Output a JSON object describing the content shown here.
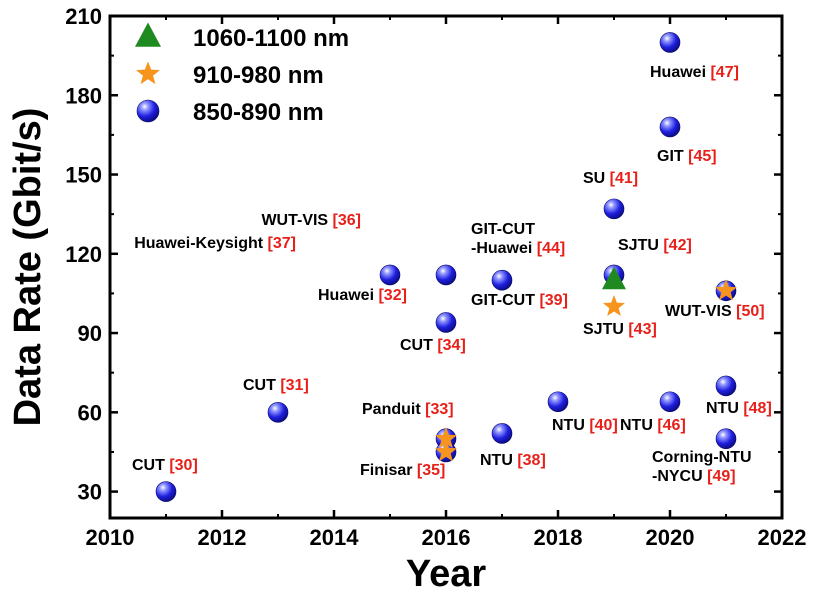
{
  "chart_data": {
    "type": "scatter",
    "xlabel": "Year",
    "ylabel": "Data Rate (Gbit/s)",
    "xlim": [
      2010,
      2022
    ],
    "ylim": [
      20,
      210
    ],
    "xticks": [
      2010,
      2012,
      2014,
      2016,
      2018,
      2020,
      2022
    ],
    "yticks": [
      30,
      60,
      90,
      120,
      150,
      180,
      210
    ],
    "grid": false,
    "legend_position": "top-left",
    "series": [
      {
        "name": "1060-1100 nm",
        "marker": "triangle",
        "color": "#1f8a1f",
        "points": [
          {
            "x": 2019,
            "y": 110
          }
        ]
      },
      {
        "name": "910-980 nm",
        "marker": "star",
        "color": "#f7941d",
        "points": [
          {
            "x": 2016,
            "y": 50
          },
          {
            "x": 2016,
            "y": 45
          },
          {
            "x": 2019,
            "y": 100
          },
          {
            "x": 2021,
            "y": 106
          }
        ]
      },
      {
        "name": "850-890 nm",
        "marker": "sphere",
        "color": "#1f1fe0",
        "points": [
          {
            "x": 2011,
            "y": 30
          },
          {
            "x": 2013,
            "y": 60
          },
          {
            "x": 2015,
            "y": 112
          },
          {
            "x": 2016,
            "y": 112
          },
          {
            "x": 2016,
            "y": 94
          },
          {
            "x": 2016,
            "y": 50
          },
          {
            "x": 2016,
            "y": 45
          },
          {
            "x": 2017,
            "y": 110
          },
          {
            "x": 2017,
            "y": 52
          },
          {
            "x": 2018,
            "y": 64
          },
          {
            "x": 2019,
            "y": 137
          },
          {
            "x": 2019,
            "y": 112
          },
          {
            "x": 2020,
            "y": 200
          },
          {
            "x": 2020,
            "y": 168
          },
          {
            "x": 2020,
            "y": 64
          },
          {
            "x": 2021,
            "y": 106
          },
          {
            "x": 2021,
            "y": 70
          },
          {
            "x": 2021,
            "y": 50
          }
        ]
      }
    ],
    "annotations": [
      {
        "lines": [
          {
            "name": "CUT ",
            "ref": "[30]"
          }
        ],
        "anchor": "start"
      },
      {
        "lines": [
          {
            "name": "CUT ",
            "ref": "[31]"
          }
        ],
        "anchor": "start"
      },
      {
        "lines": [
          {
            "name": "Huawei ",
            "ref": "[32]"
          }
        ],
        "anchor": "start"
      },
      {
        "lines": [
          {
            "name": "WUT-VIS ",
            "ref": "[36]"
          }
        ],
        "anchor": "end"
      },
      {
        "lines": [
          {
            "name": "Huawei-Keysight ",
            "ref": "[37]"
          }
        ],
        "anchor": "end"
      },
      {
        "lines": [
          {
            "name": "CUT ",
            "ref": "[34]"
          }
        ],
        "anchor": "start"
      },
      {
        "lines": [
          {
            "name": "Panduit ",
            "ref": "[33]"
          }
        ],
        "anchor": "start"
      },
      {
        "lines": [
          {
            "name": "Finisar ",
            "ref": "[35]"
          }
        ],
        "anchor": "start"
      },
      {
        "lines": [
          {
            "name": "GIT-CUT ",
            "ref": "[39]"
          }
        ],
        "anchor": "start"
      },
      {
        "lines": [
          {
            "name": "GIT-CUT",
            "ref": ""
          },
          {
            "name": "-Huawei ",
            "ref": "[44]"
          }
        ],
        "anchor": "start"
      },
      {
        "lines": [
          {
            "name": "NTU ",
            "ref": "[38]"
          }
        ],
        "anchor": "start"
      },
      {
        "lines": [
          {
            "name": "NTU ",
            "ref": "[40]"
          }
        ],
        "anchor": "start"
      },
      {
        "lines": [
          {
            "name": "SU ",
            "ref": "[41]"
          }
        ],
        "anchor": "start"
      },
      {
        "lines": [
          {
            "name": "SJTU ",
            "ref": "[42]"
          }
        ],
        "anchor": "start"
      },
      {
        "lines": [
          {
            "name": "SJTU ",
            "ref": "[43]"
          }
        ],
        "anchor": "start"
      },
      {
        "lines": [
          {
            "name": "Huawei ",
            "ref": "[47]"
          }
        ],
        "anchor": "start"
      },
      {
        "lines": [
          {
            "name": "GIT ",
            "ref": "[45]"
          }
        ],
        "anchor": "start"
      },
      {
        "lines": [
          {
            "name": "NTU ",
            "ref": "[46]"
          }
        ],
        "anchor": "start"
      },
      {
        "lines": [
          {
            "name": "WUT-VIS ",
            "ref": "[50]"
          }
        ],
        "anchor": "start"
      },
      {
        "lines": [
          {
            "name": "NTU ",
            "ref": "[48]"
          }
        ],
        "anchor": "start"
      },
      {
        "lines": [
          {
            "name": "Corning-NTU",
            "ref": ""
          },
          {
            "name": "-NYCU ",
            "ref": "[49]"
          }
        ],
        "anchor": "start"
      }
    ]
  }
}
